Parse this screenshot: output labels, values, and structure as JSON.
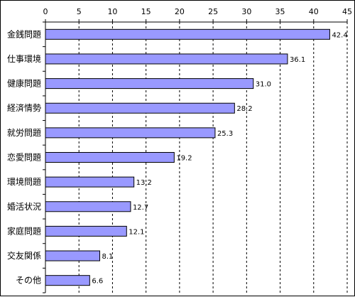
{
  "chart_data": {
    "type": "bar",
    "orientation": "horizontal",
    "categories": [
      "金銭問題",
      "仕事環境",
      "健康問題",
      "経済情勢",
      "就労問題",
      "恋愛問題",
      "環境問題",
      "婚活状況",
      "家庭問題",
      "交友関係",
      "その他"
    ],
    "values": [
      42.4,
      36.1,
      31.0,
      28.2,
      25.3,
      19.2,
      13.2,
      12.7,
      12.1,
      8.1,
      6.6
    ],
    "value_labels": [
      "42.4",
      "36.1",
      "31.0",
      "28.2",
      "25.3",
      "19.2",
      "13.2",
      "12.7",
      "12.1",
      "8.1",
      "6.6"
    ],
    "xlim": [
      0,
      45
    ],
    "x_ticks": [
      0,
      5,
      10,
      15,
      20,
      25,
      30,
      35,
      40,
      45
    ],
    "grid": "vertical-dashed",
    "legend": "none",
    "bar_color": "#9999ff",
    "bar_border_color": "#000000",
    "grid_color": "#000000"
  }
}
